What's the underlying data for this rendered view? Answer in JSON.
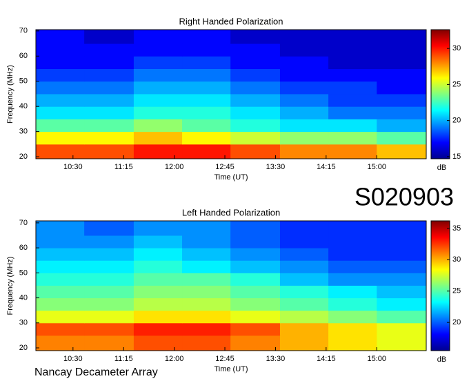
{
  "label": "S020903",
  "footer": "Nancay Decameter Array",
  "chart_data": [
    {
      "type": "heatmap",
      "title": "Right Handed Polarization",
      "xlabel": "Time (UT)",
      "ylabel": "Frequency (MHz)",
      "colormap": "jet",
      "colorbar_label": "dB",
      "xlim": [
        597,
        944
      ],
      "ylim": [
        19.2,
        70.5
      ],
      "xticks": [
        {
          "value": 630,
          "label": "10:30"
        },
        {
          "value": 675,
          "label": "11:15"
        },
        {
          "value": 720,
          "label": "12:00"
        },
        {
          "value": 765,
          "label": "12:45"
        },
        {
          "value": 810,
          "label": "13:30"
        },
        {
          "value": 855,
          "label": "14:15"
        },
        {
          "value": 900,
          "label": "15:00"
        }
      ],
      "yticks": [
        20,
        30,
        40,
        50,
        60,
        70
      ],
      "clim": [
        14.7,
        32.6
      ],
      "cticks": [
        15,
        20,
        25,
        30
      ],
      "x_edges": [
        597,
        640,
        684,
        727,
        770,
        814,
        857,
        900,
        944
      ],
      "y_edges": [
        19,
        25,
        30,
        35,
        40,
        45,
        50,
        55,
        60,
        65,
        71
      ],
      "values": [
        [
          29,
          29,
          30,
          30,
          29,
          28,
          28,
          27
        ],
        [
          26,
          26,
          27,
          26,
          25,
          24,
          24,
          23
        ],
        [
          23,
          23,
          24,
          23,
          22,
          21,
          21,
          20
        ],
        [
          21,
          21,
          22,
          22,
          21,
          20,
          19,
          19
        ],
        [
          20,
          20,
          21,
          21,
          20,
          19,
          18,
          18
        ],
        [
          19,
          19,
          20,
          20,
          19,
          18,
          18,
          17
        ],
        [
          18,
          18,
          19,
          19,
          18,
          17,
          17,
          17
        ],
        [
          17,
          17,
          18,
          18,
          17,
          17,
          16,
          16
        ],
        [
          17,
          17,
          17,
          17,
          17,
          16,
          16,
          16
        ],
        [
          17,
          16,
          17,
          17,
          16,
          16,
          16,
          16
        ]
      ]
    },
    {
      "type": "heatmap",
      "title": "Left Handed Polarization",
      "xlabel": "Time (UT)",
      "ylabel": "Frequency (MHz)",
      "colormap": "jet",
      "colorbar_label": "dB",
      "xlim": [
        597,
        944
      ],
      "ylim": [
        18.9,
        70.8
      ],
      "xticks": [
        {
          "value": 630,
          "label": "10:30"
        },
        {
          "value": 675,
          "label": "11:15"
        },
        {
          "value": 720,
          "label": "12:00"
        },
        {
          "value": 765,
          "label": "12:45"
        },
        {
          "value": 810,
          "label": "13:30"
        },
        {
          "value": 855,
          "label": "14:15"
        },
        {
          "value": 900,
          "label": "15:00"
        }
      ],
      "yticks": [
        20,
        30,
        40,
        50,
        60,
        70
      ],
      "clim": [
        15.5,
        36.2
      ],
      "cticks": [
        20,
        25,
        30,
        35
      ],
      "x_edges": [
        597,
        640,
        684,
        727,
        770,
        814,
        857,
        900,
        944
      ],
      "y_edges": [
        19,
        25,
        30,
        35,
        40,
        45,
        50,
        55,
        60,
        65,
        71
      ],
      "values": [
        [
          31,
          31,
          32,
          32,
          31,
          30,
          29,
          28
        ],
        [
          32,
          32,
          33,
          33,
          32,
          30,
          29,
          28
        ],
        [
          28,
          28,
          29,
          29,
          28,
          27,
          26,
          25
        ],
        [
          26,
          26,
          27,
          27,
          26,
          25,
          24,
          23
        ],
        [
          25,
          25,
          26,
          26,
          25,
          24,
          23,
          22
        ],
        [
          24,
          24,
          25,
          25,
          24,
          22,
          21,
          21
        ],
        [
          23,
          23,
          24,
          23,
          22,
          21,
          20,
          20
        ],
        [
          22,
          22,
          23,
          22,
          21,
          20,
          19,
          19
        ],
        [
          21,
          21,
          22,
          21,
          20,
          19,
          19,
          19
        ],
        [
          21,
          20,
          21,
          21,
          20,
          19,
          19,
          19
        ]
      ]
    }
  ]
}
